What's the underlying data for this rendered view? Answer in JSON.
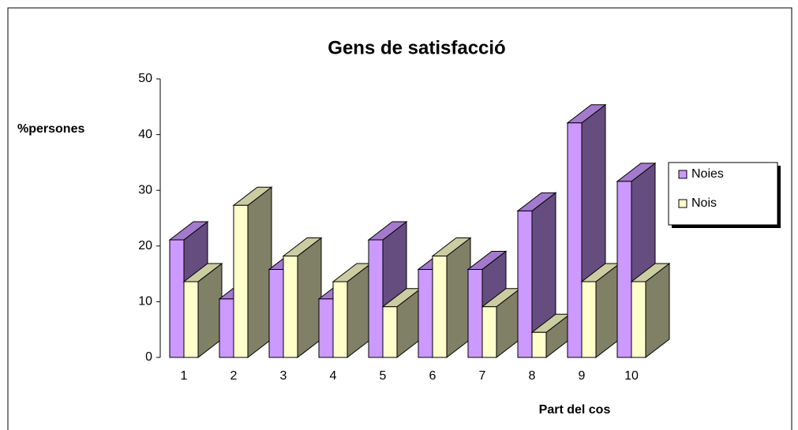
{
  "chart_data": {
    "type": "bar3d",
    "title": "Gens de satisfacció",
    "y_label": "%persones",
    "x_label": "Part del cos",
    "categories": [
      "1",
      "2",
      "3",
      "4",
      "5",
      "6",
      "7",
      "8",
      "9",
      "10"
    ],
    "series": [
      {
        "name": "Noies",
        "color": "#cc99ff",
        "values": [
          21.1,
          10.5,
          15.8,
          10.5,
          21.1,
          15.8,
          15.8,
          26.3,
          42.1,
          31.6
        ]
      },
      {
        "name": "Nois",
        "color": "#ffffcc",
        "values": [
          13.6,
          27.3,
          18.2,
          13.6,
          9.1,
          18.2,
          9.1,
          4.5,
          13.6,
          13.6
        ]
      }
    ],
    "ylim": [
      0,
      50
    ],
    "yticks": [
      0,
      10,
      20,
      30,
      40,
      50
    ],
    "legend": "right"
  }
}
